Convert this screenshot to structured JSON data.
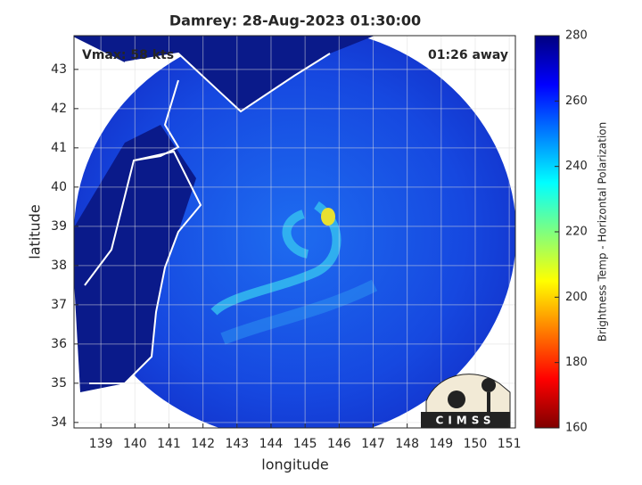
{
  "chart_data": {
    "type": "image",
    "title": "Damrey: 28-Aug-2023 01:30:00",
    "x_label": "longitude",
    "y_label": "latitude",
    "annotations": [
      "Vmax: 58 kts",
      "01:26 away"
    ],
    "logo": "CIMSS",
    "xlim": [
      138.21,
      151.18
    ],
    "xticks": [
      139,
      140,
      141,
      142,
      143,
      144,
      145,
      146,
      147,
      148,
      149,
      150,
      151
    ],
    "ylim": [
      33.86,
      43.86
    ],
    "yticks": [
      34,
      35,
      36,
      37,
      38,
      39,
      40,
      41,
      42,
      43
    ],
    "grid": true,
    "colorbar": {
      "label": "Brightness Temp - Horizontal Polarization",
      "colormap": "jet",
      "lim": [
        160,
        280
      ],
      "ticks": [
        160,
        180,
        200,
        220,
        240,
        260,
        280
      ]
    }
  }
}
